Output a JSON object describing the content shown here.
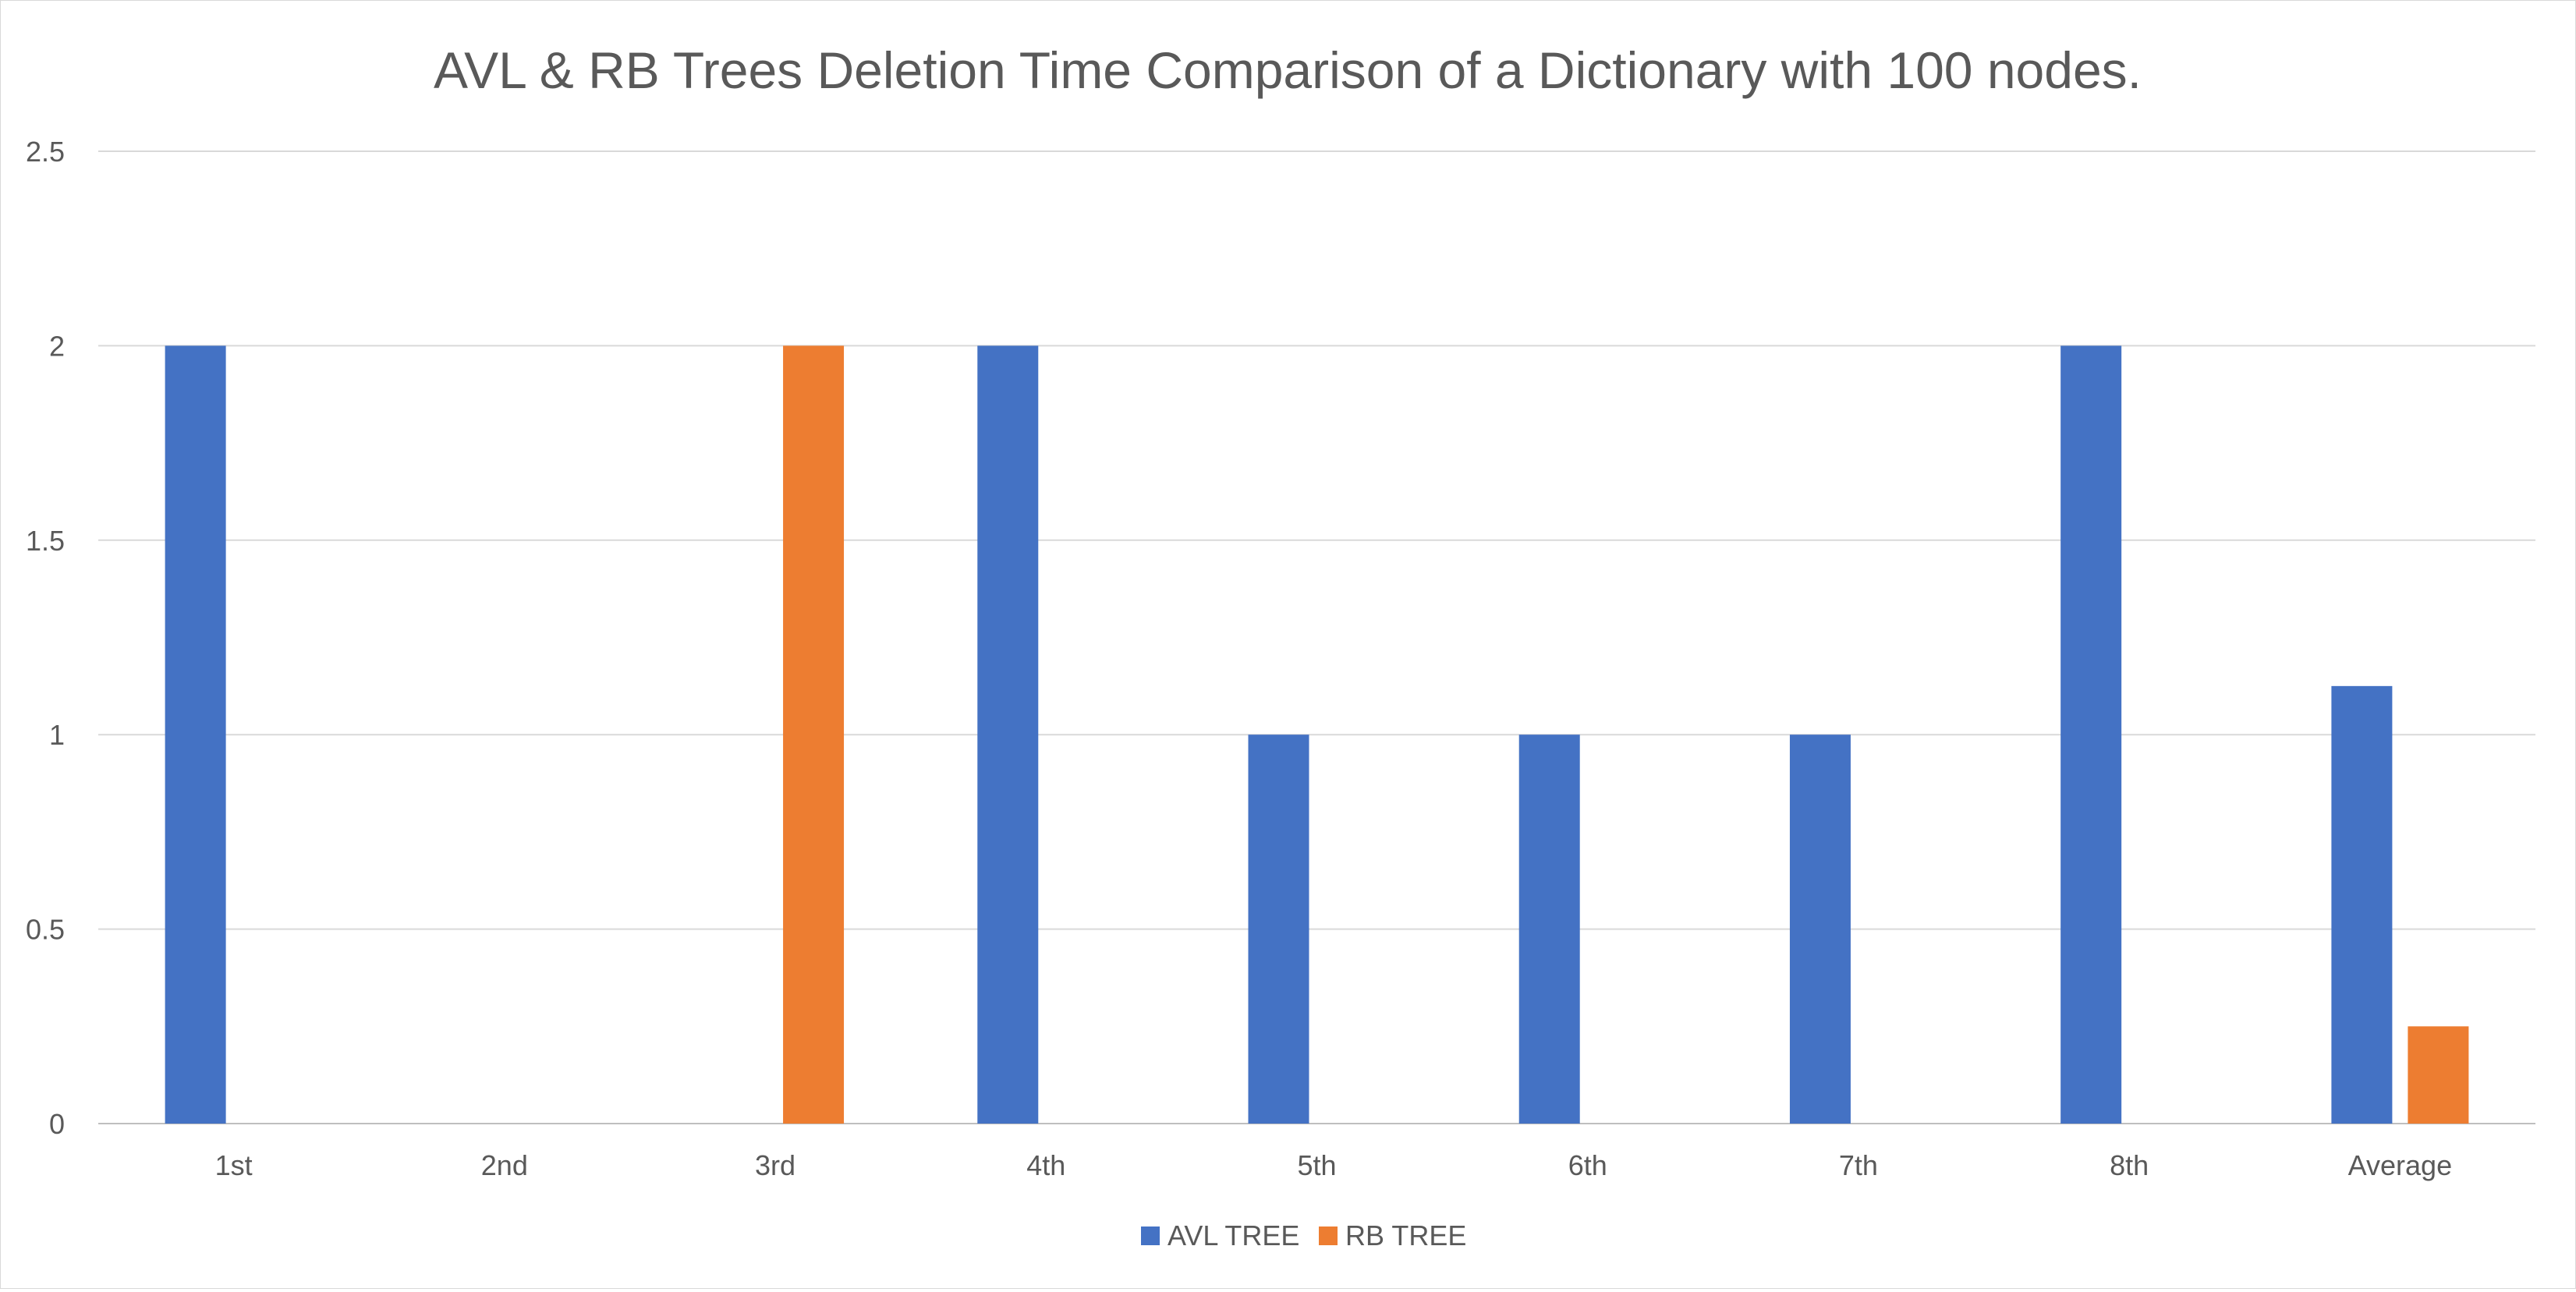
{
  "chart_data": {
    "type": "bar",
    "title": "AVL & RB Trees Deletion Time Comparison of a Dictionary with 100 nodes.",
    "xlabel": "",
    "ylabel": "",
    "categories": [
      "1st",
      "2nd",
      "3rd",
      "4th",
      "5th",
      "6th",
      "7th",
      "8th",
      "Average"
    ],
    "series": [
      {
        "name": "AVL TREE",
        "color": "#4472C4",
        "values": [
          2,
          0,
          0,
          2,
          1,
          1,
          1,
          2,
          1.125
        ]
      },
      {
        "name": "RB TREE",
        "color": "#ED7D31",
        "values": [
          0,
          0,
          2,
          0,
          0,
          0,
          0,
          0,
          0.25
        ]
      }
    ],
    "ylim": [
      0,
      2.5
    ],
    "yticks": [
      "0",
      "0.5",
      "1",
      "1.5",
      "2",
      "2.5"
    ],
    "grid": true,
    "legend_position": "bottom"
  }
}
